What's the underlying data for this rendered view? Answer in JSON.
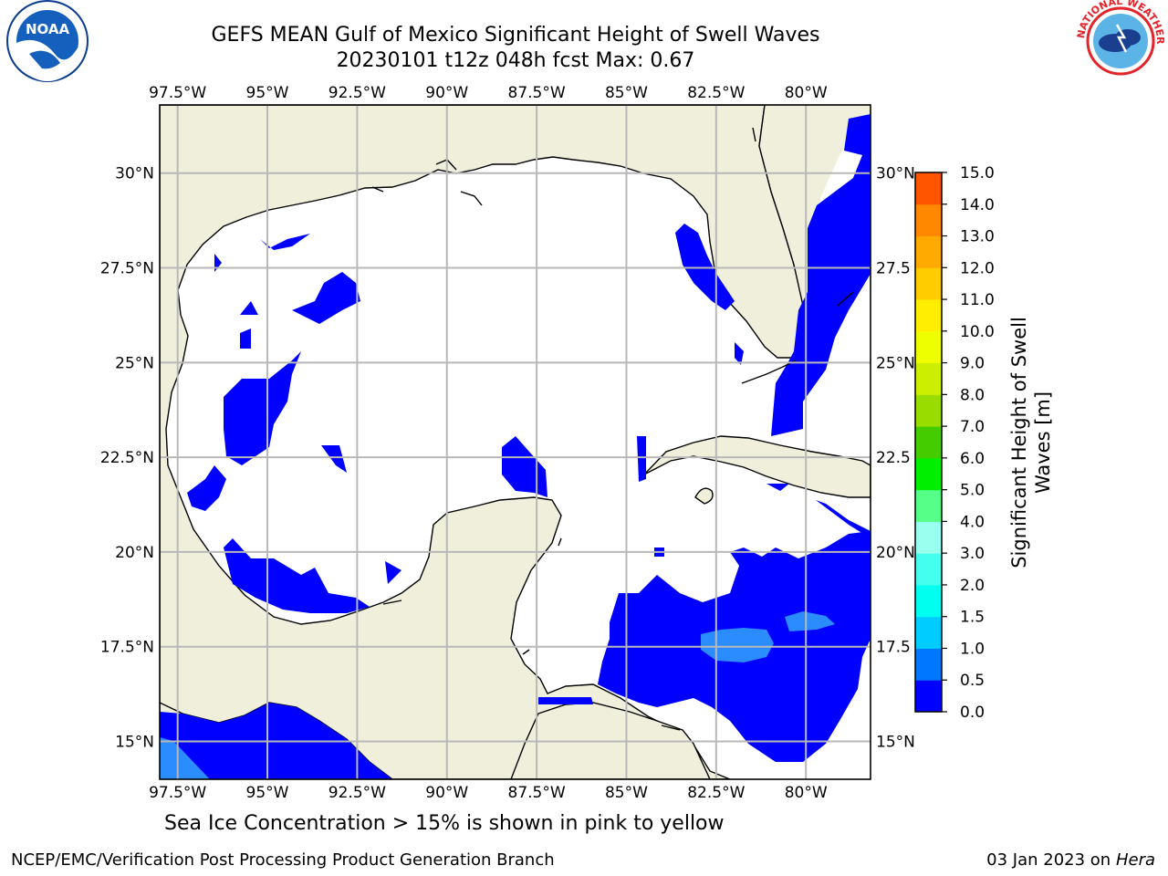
{
  "header": {
    "title_line1": "GEFS MEAN Gulf of Mexico Significant Height of Swell Waves",
    "title_line2": "20230101 t12z 048h fcst   Max: 0.67"
  },
  "logos": {
    "left": {
      "name": "noaa-logo",
      "text": "NOAA",
      "ring_text": "NATIONAL OCEANIC AND ATMOSPHERIC ADMINISTRATION · U.S. DEPARTMENT OF COMMERCE",
      "color": "#0a3d8f"
    },
    "right": {
      "name": "national-weather-service-logo",
      "ring_text": "NATIONAL WEATHER SERVICE",
      "color": "#e3252b"
    }
  },
  "map": {
    "lon_range": [
      -98,
      -78.2
    ],
    "lat_range": [
      14.0,
      31.8
    ],
    "lon_ticks": [
      "97.5°W",
      "95°W",
      "92.5°W",
      "90°W",
      "87.5°W",
      "85°W",
      "82.5°W",
      "80°W"
    ],
    "lat_ticks": [
      "30°N",
      "27.5°N",
      "25°N",
      "22.5°N",
      "20°N",
      "17.5°N",
      "15°N"
    ],
    "lon_tick_values": [
      -97.5,
      -95,
      -92.5,
      -90,
      -87.5,
      -85,
      -82.5,
      -80
    ],
    "lat_tick_values": [
      30,
      27.5,
      25,
      22.5,
      20,
      17.5,
      15
    ],
    "right_lat_ticks": [
      "30°N",
      "27.5",
      "25°N",
      "22.5",
      "20°N",
      "17.5",
      "15°N"
    ],
    "land_color": "#efefdc",
    "ocean_color": "#ffffff",
    "grid": true,
    "grid_color": "#b8b8b8"
  },
  "colorbar": {
    "label_line1": "Significant Height of Swell",
    "label_line2": "Waves [m]",
    "levels": [
      "0.0",
      "0.5",
      "1.0",
      "1.5",
      "2.0",
      "3.0",
      "4.0",
      "5.0",
      "6.0",
      "7.0",
      "8.0",
      "9.0",
      "10.0",
      "11.0",
      "12.0",
      "13.0",
      "14.0",
      "15.0"
    ],
    "colors": [
      "#0000ff",
      "#0077ff",
      "#00ccff",
      "#00ffee",
      "#44ffee",
      "#99ffee",
      "#55ff88",
      "#00ee00",
      "#44cc00",
      "#99dd00",
      "#ccee00",
      "#eeff00",
      "#ffee00",
      "#ffcc00",
      "#ffaa00",
      "#ff8800",
      "#ff5500",
      "#ff2200",
      "#ff0000"
    ]
  },
  "caption": "Sea Ice Concentration > 15% is shown in pink to yellow",
  "footer": {
    "left": "NCEP/EMC/Verification Post Processing Product Generation Branch",
    "right_date": "03 Jan 2023 on ",
    "right_host": "Hera"
  }
}
